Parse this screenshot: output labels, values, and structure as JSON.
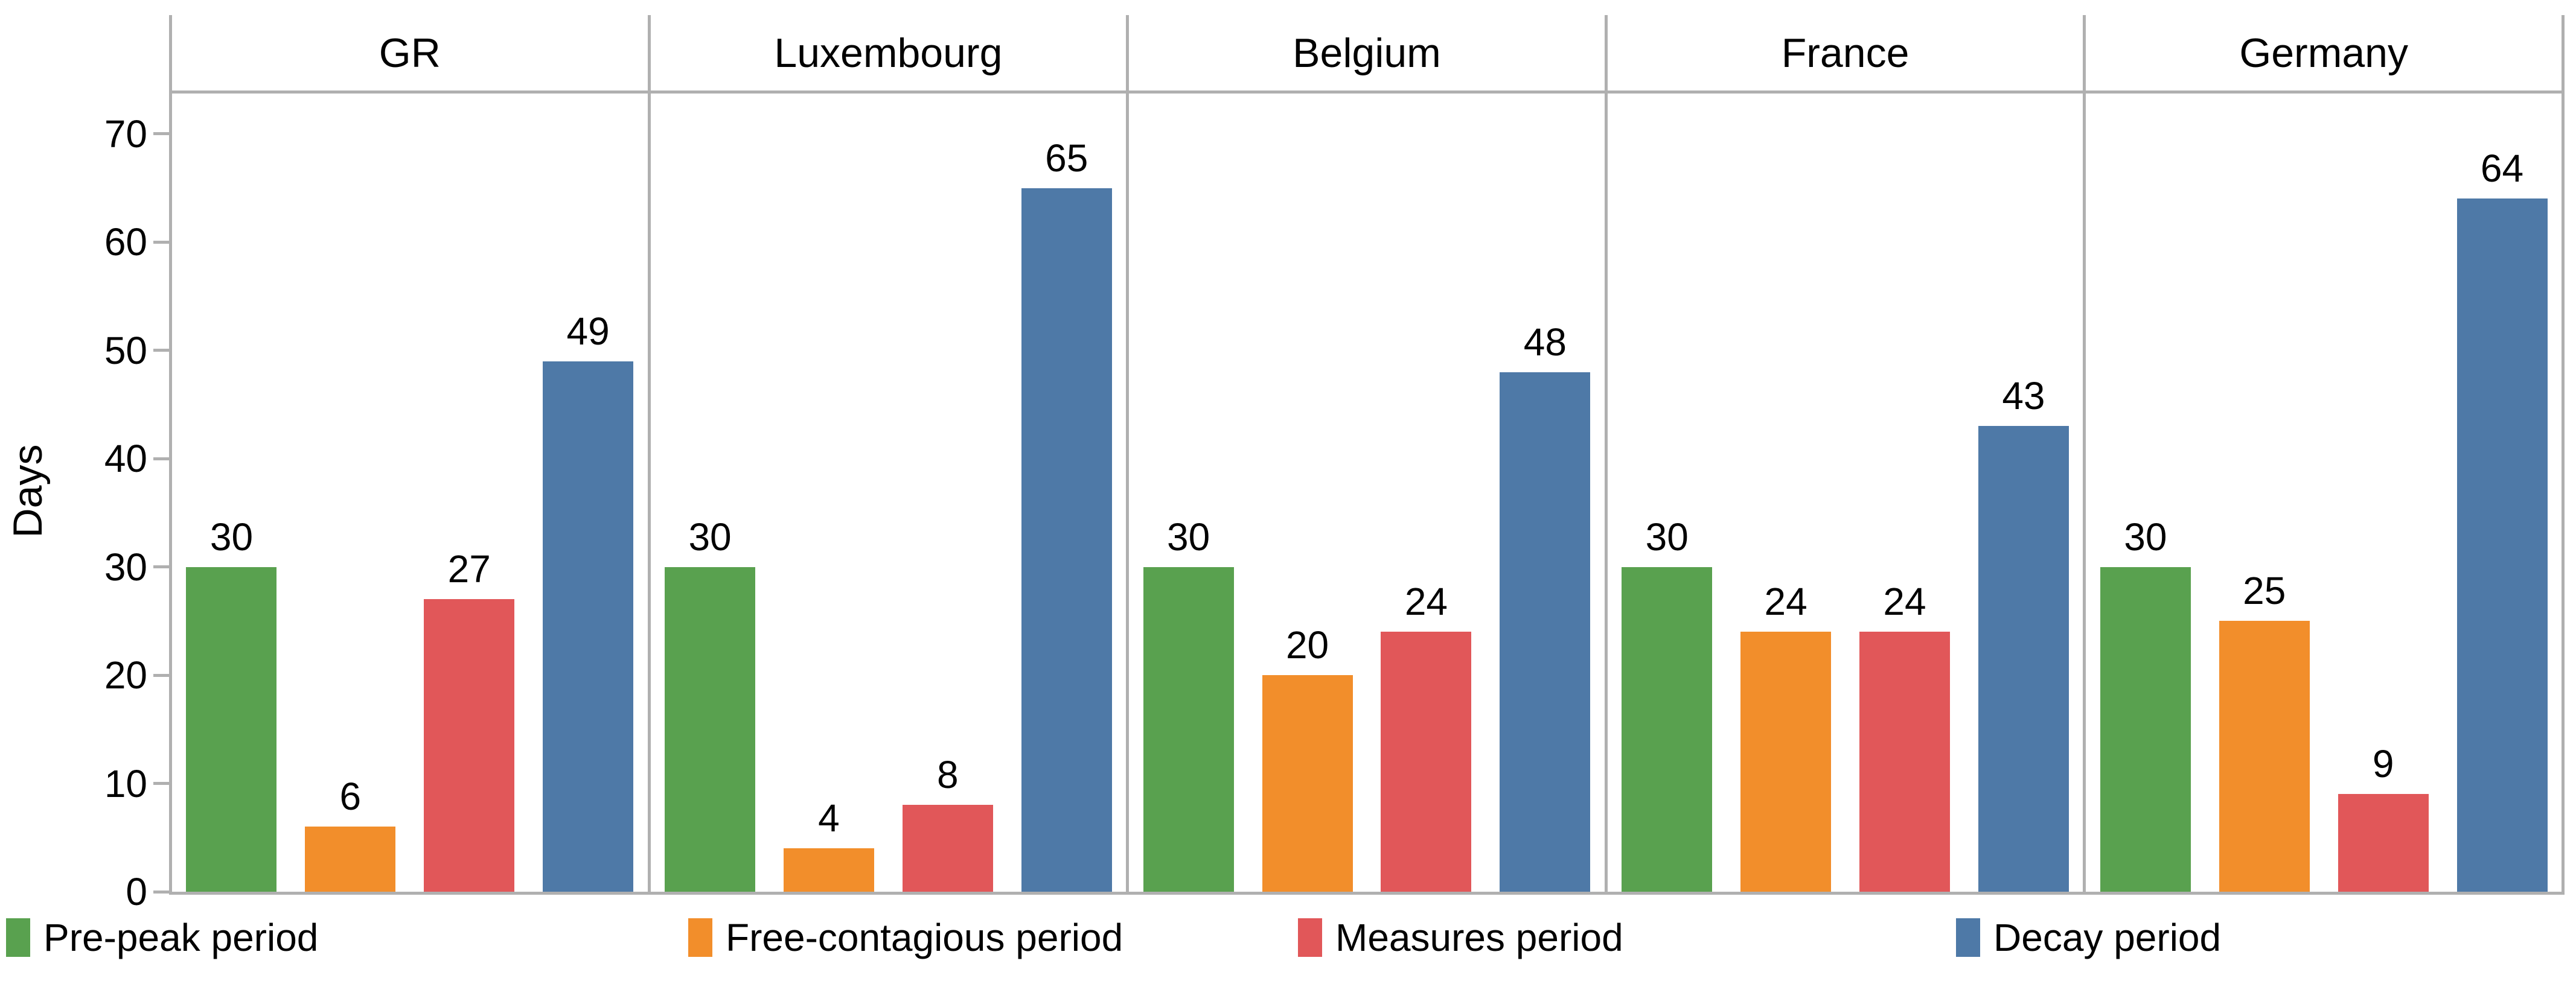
{
  "chart_data": {
    "type": "bar",
    "categories": [
      "GR",
      "Luxembourg",
      "Belgium",
      "France",
      "Germany"
    ],
    "series": [
      {
        "name": "Pre-peak period",
        "color": "#59A14F",
        "values": [
          30,
          30,
          30,
          30,
          30
        ]
      },
      {
        "name": "Free-contagious period",
        "color": "#F28E2B",
        "values": [
          6,
          4,
          20,
          24,
          25
        ]
      },
      {
        "name": "Measures period",
        "color": "#E15759",
        "values": [
          27,
          8,
          24,
          24,
          9
        ]
      },
      {
        "name": "Decay period",
        "color": "#4E79A7",
        "values": [
          49,
          65,
          48,
          43,
          64
        ]
      }
    ],
    "title": "",
    "xlabel": "",
    "ylabel": "Days",
    "yticks": [
      0,
      10,
      20,
      30,
      40,
      50,
      60,
      70
    ],
    "ylim": [
      0,
      74
    ],
    "grid": false,
    "bar_value_labels": true,
    "legend_position": "bottom",
    "panel_layout": "one bordered panel per category with header band",
    "axis_color": "#b0b0b0",
    "text_color": "#000000"
  }
}
